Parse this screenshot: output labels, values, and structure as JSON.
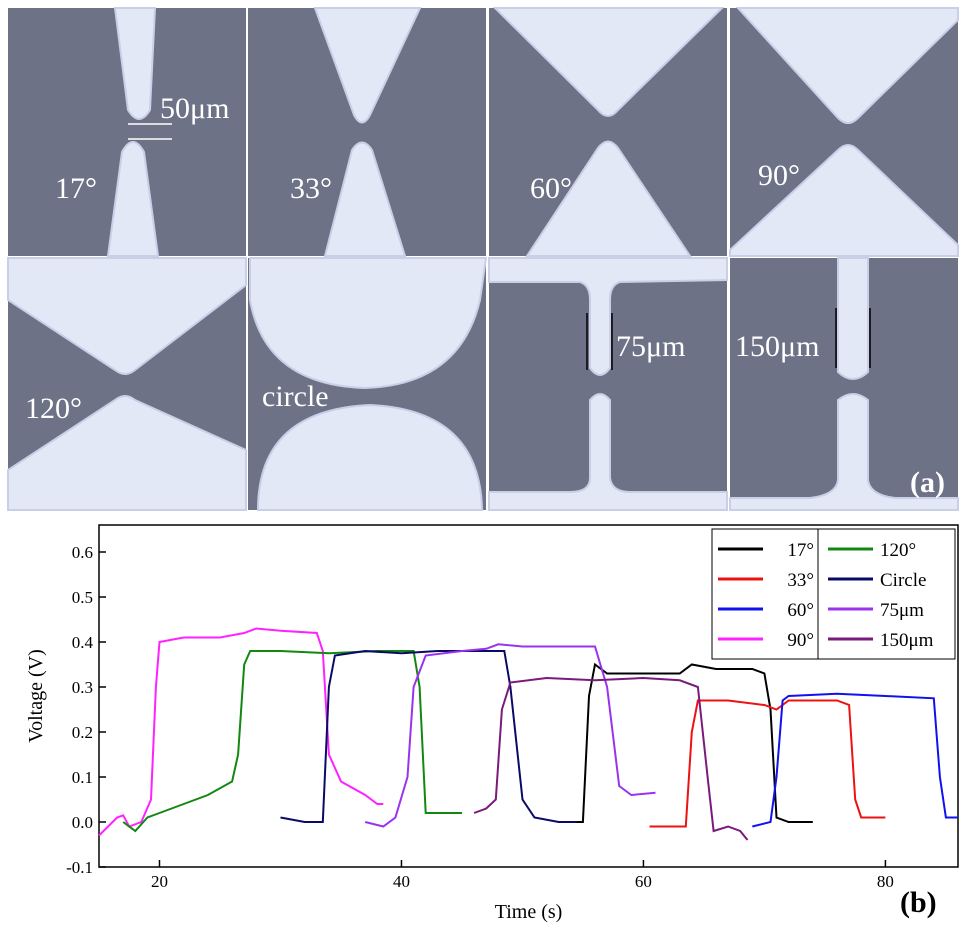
{
  "figure_a": {
    "panels": [
      "17°",
      "33°",
      "60°",
      "90°",
      "120°",
      "circle",
      "75μm",
      "150μm"
    ],
    "scale_bar": "50μm",
    "tag": "(a)"
  },
  "chart_data": {
    "type": "line",
    "x_label": "Time (s)",
    "y_label": "Voltage (V)",
    "tag": "(b)",
    "xlim": [
      15,
      86
    ],
    "ylim": [
      -0.1,
      0.66
    ],
    "xticks": [
      20,
      40,
      60,
      80
    ],
    "yticks": [
      -0.1,
      {
        "value": 0,
        "label": "0.0"
      },
      0.1,
      0.2,
      0.3,
      0.4,
      0.5,
      0.6
    ],
    "legend": "upper right",
    "series": [
      {
        "name": "17°",
        "color": "#000000",
        "x": [
          54,
          55,
          55.5,
          56,
          57,
          60,
          63,
          64,
          66,
          69,
          70,
          70.5,
          71,
          72,
          74
        ],
        "values": [
          0.0,
          0.0,
          0.28,
          0.35,
          0.33,
          0.33,
          0.33,
          0.35,
          0.34,
          0.34,
          0.33,
          0.25,
          0.01,
          0.0,
          0.0
        ]
      },
      {
        "name": "33°",
        "color": "#ee1111",
        "x": [
          60.5,
          63.5,
          64,
          64.5,
          67,
          70,
          71,
          71.5,
          72,
          76,
          77,
          77.5,
          78,
          80
        ],
        "values": [
          -0.01,
          -0.01,
          0.2,
          0.27,
          0.27,
          0.26,
          0.25,
          0.26,
          0.27,
          0.27,
          0.26,
          0.05,
          0.01,
          0.01
        ]
      },
      {
        "name": "60°",
        "color": "#1111ee",
        "x": [
          69,
          70.5,
          71,
          71.5,
          72,
          76,
          80,
          84,
          84.5,
          85,
          86
        ],
        "values": [
          -0.01,
          0.0,
          0.1,
          0.27,
          0.28,
          0.285,
          0.28,
          0.275,
          0.1,
          0.01,
          0.01
        ]
      },
      {
        "name": "90°",
        "color": "#ff22ff",
        "x": [
          15,
          16.5,
          17,
          17.5,
          18.5,
          19.3,
          19.7,
          20,
          22,
          25,
          27,
          28,
          30,
          33,
          33.5,
          34,
          35,
          37,
          38,
          38.5
        ],
        "values": [
          -0.03,
          0.01,
          0.015,
          -0.01,
          0.0,
          0.05,
          0.3,
          0.4,
          0.41,
          0.41,
          0.42,
          0.43,
          0.425,
          0.42,
          0.38,
          0.15,
          0.09,
          0.06,
          0.04,
          0.04
        ]
      },
      {
        "name": "120°",
        "color": "#118811",
        "x": [
          17,
          18,
          19,
          20,
          22,
          24,
          26,
          26.5,
          27,
          27.5,
          30,
          34,
          38,
          41,
          41.5,
          42,
          43,
          45
        ],
        "values": [
          0.0,
          -0.02,
          0.01,
          0.02,
          0.04,
          0.06,
          0.09,
          0.15,
          0.35,
          0.38,
          0.38,
          0.375,
          0.38,
          0.38,
          0.3,
          0.02,
          0.02,
          0.02
        ]
      },
      {
        "name": "Circle",
        "color": "#0a0a66",
        "x": [
          30,
          32,
          33.5,
          34,
          34.5,
          37,
          40,
          43,
          47,
          48.5,
          49,
          50,
          51,
          53,
          54.5
        ],
        "values": [
          0.01,
          0.0,
          0.0,
          0.3,
          0.37,
          0.38,
          0.375,
          0.38,
          0.38,
          0.38,
          0.3,
          0.05,
          0.01,
          0.0,
          0.0
        ]
      },
      {
        "name": "75μm",
        "color": "#9933ee",
        "x": [
          37,
          38.5,
          39.5,
          40.5,
          41,
          42,
          45,
          47,
          48,
          50,
          53,
          56,
          57,
          58,
          59,
          61
        ],
        "values": [
          0.0,
          -0.01,
          0.01,
          0.1,
          0.3,
          0.37,
          0.38,
          0.385,
          0.395,
          0.39,
          0.39,
          0.39,
          0.3,
          0.08,
          0.06,
          0.065
        ]
      },
      {
        "name": "150μm",
        "color": "#7a1a7a",
        "x": [
          46,
          47,
          47.8,
          48.3,
          49,
          52,
          56,
          60,
          63,
          64.5,
          65.3,
          65.8,
          67,
          68,
          68.6
        ],
        "values": [
          0.02,
          0.03,
          0.05,
          0.25,
          0.31,
          0.32,
          0.315,
          0.32,
          0.315,
          0.3,
          0.1,
          -0.02,
          -0.01,
          -0.02,
          -0.04
        ]
      }
    ]
  }
}
